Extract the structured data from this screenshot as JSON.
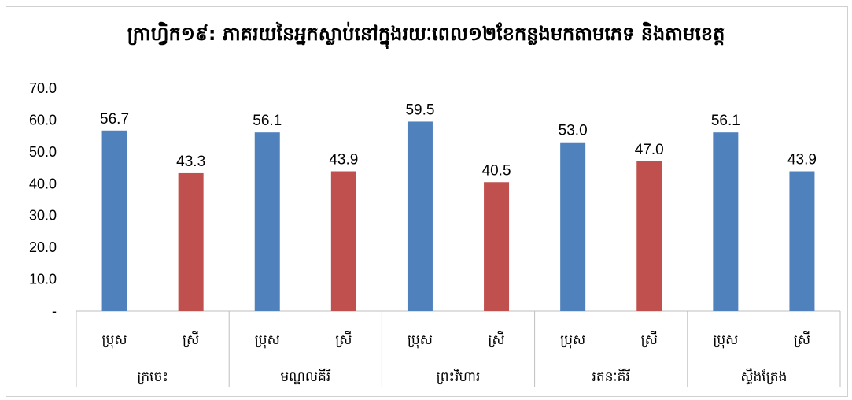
{
  "chart_data": {
    "type": "bar",
    "title": "ក្រាហ្វិក១៩: ភាគរយនៃអ្នកស្លាប់នៅក្នុងរយៈពេល១២ខែកន្លងមកតាមភេទ និងតាមខេត្ត",
    "ylim": [
      0,
      70
    ],
    "yticks": [
      "-",
      "10.0",
      "20.0",
      "30.0",
      "40.0",
      "50.0",
      "60.0",
      "70.0"
    ],
    "grid": false,
    "groups": [
      "ក្រចេះ",
      "មណ្ឌលគីរី",
      "ព្រះវិហារ",
      "រតនៈគីរី",
      "ស្ទឹងត្រែង"
    ],
    "bars": [
      {
        "group": "ក្រចេះ",
        "sex": "ប្រុស",
        "value": 56.7,
        "label": "56.7",
        "color": "#4f81bd"
      },
      {
        "group": "ក្រចេះ",
        "sex": "ស្រី",
        "value": 43.3,
        "label": "43.3",
        "color": "#c0504d"
      },
      {
        "group": "មណ្ឌលគីរី",
        "sex": "ប្រុស",
        "value": 56.1,
        "label": "56.1",
        "color": "#4f81bd"
      },
      {
        "group": "មណ្ឌលគីរី",
        "sex": "ស្រី",
        "value": 43.9,
        "label": "43.9",
        "color": "#c0504d"
      },
      {
        "group": "ព្រះវិហារ",
        "sex": "ប្រុស",
        "value": 59.5,
        "label": "59.5",
        "color": "#4f81bd"
      },
      {
        "group": "ព្រះវិហារ",
        "sex": "ស្រី",
        "value": 40.5,
        "label": "40.5",
        "color": "#c0504d"
      },
      {
        "group": "រតនៈគីរី",
        "sex": "ប្រុស",
        "value": 53.0,
        "label": "53.0",
        "color": "#4f81bd"
      },
      {
        "group": "រតនៈគីរី",
        "sex": "ស្រី",
        "value": 47.0,
        "label": "47.0",
        "color": "#c0504d"
      },
      {
        "group": "ស្ទឹងត្រែង",
        "sex": "ប្រុស",
        "value": 56.1,
        "label": "56.1",
        "color": "#4f81bd"
      },
      {
        "group": "ស្ទឹងត្រែង",
        "sex": "ស្រី",
        "value": 43.9,
        "label": "43.9",
        "color": "#4f81bd"
      }
    ]
  }
}
